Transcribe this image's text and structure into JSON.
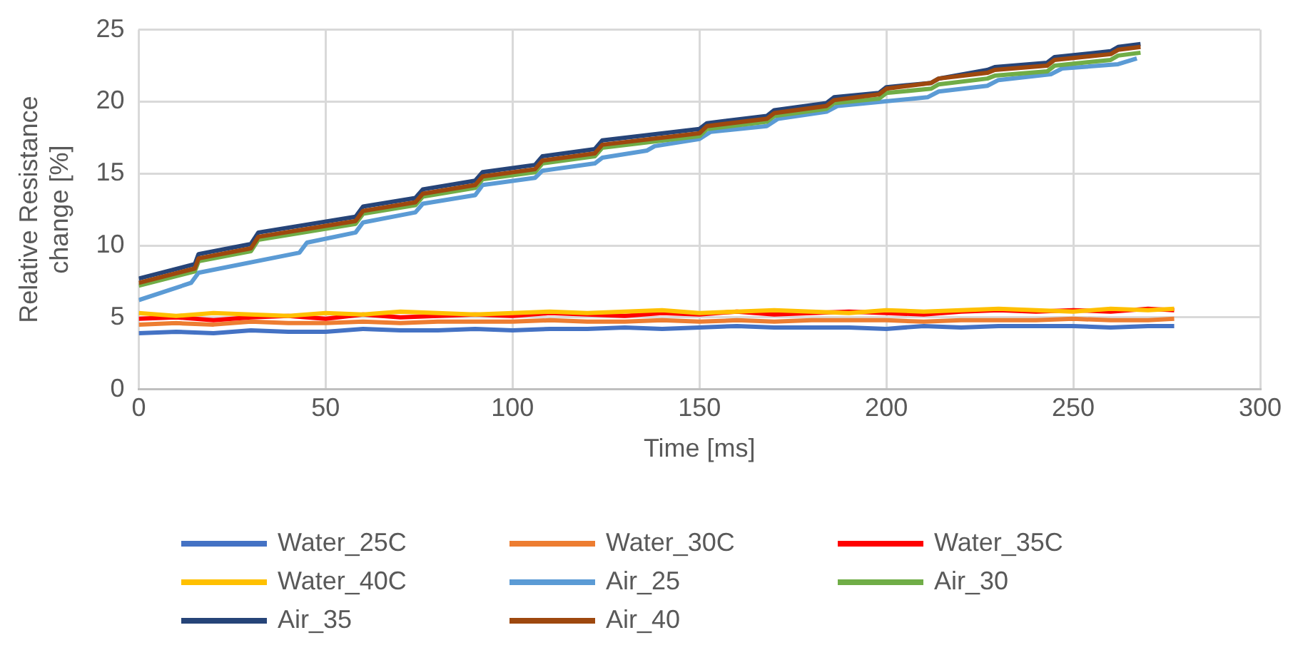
{
  "chart_data": {
    "type": "line",
    "xlabel": "Time [ms]",
    "ylabel": "Relative Resistance change [%]",
    "xlim": [
      0,
      300
    ],
    "xticks": [
      0,
      50,
      100,
      150,
      200,
      250,
      300
    ],
    "ylim": [
      0,
      25
    ],
    "yticks": [
      0,
      5,
      10,
      15,
      20,
      25
    ],
    "grid": true,
    "legend": "bottom",
    "marker": "none",
    "line_style": "solid",
    "series": [
      {
        "name": "Water_25C",
        "color": "#4472c4",
        "x": [
          0,
          10,
          20,
          30,
          40,
          50,
          60,
          70,
          80,
          90,
          100,
          110,
          120,
          130,
          140,
          150,
          160,
          170,
          180,
          190,
          200,
          210,
          220,
          230,
          240,
          250,
          260,
          270,
          277
        ],
        "values": [
          3.9,
          4.0,
          3.9,
          4.1,
          4.0,
          4.0,
          4.2,
          4.1,
          4.1,
          4.2,
          4.1,
          4.2,
          4.2,
          4.3,
          4.2,
          4.3,
          4.4,
          4.3,
          4.3,
          4.3,
          4.2,
          4.4,
          4.3,
          4.4,
          4.4,
          4.4,
          4.3,
          4.4,
          4.4
        ]
      },
      {
        "name": "Water_30C",
        "color": "#ed7d31",
        "x": [
          0,
          10,
          20,
          30,
          40,
          50,
          60,
          70,
          80,
          90,
          100,
          110,
          120,
          130,
          140,
          150,
          160,
          170,
          180,
          190,
          200,
          210,
          220,
          230,
          240,
          250,
          260,
          270,
          277
        ],
        "values": [
          4.5,
          4.6,
          4.5,
          4.7,
          4.6,
          4.6,
          4.7,
          4.6,
          4.7,
          4.7,
          4.7,
          4.8,
          4.7,
          4.7,
          4.8,
          4.7,
          4.8,
          4.7,
          4.8,
          4.8,
          4.8,
          4.7,
          4.8,
          4.8,
          4.8,
          4.9,
          4.8,
          4.8,
          4.9
        ]
      },
      {
        "name": "Water_35C",
        "color": "#ff0000",
        "x": [
          0,
          10,
          20,
          30,
          40,
          50,
          60,
          70,
          80,
          90,
          100,
          110,
          120,
          130,
          140,
          150,
          160,
          170,
          180,
          190,
          200,
          210,
          220,
          230,
          240,
          250,
          260,
          270,
          277
        ],
        "values": [
          4.9,
          5.0,
          4.8,
          5.0,
          5.1,
          4.9,
          5.2,
          5.0,
          5.1,
          5.2,
          5.1,
          5.3,
          5.2,
          5.1,
          5.3,
          5.2,
          5.4,
          5.2,
          5.3,
          5.4,
          5.3,
          5.2,
          5.4,
          5.5,
          5.4,
          5.5,
          5.4,
          5.6,
          5.5
        ]
      },
      {
        "name": "Water_40C",
        "color": "#ffc000",
        "x": [
          0,
          10,
          20,
          30,
          40,
          50,
          60,
          70,
          80,
          90,
          100,
          110,
          120,
          130,
          140,
          150,
          160,
          170,
          180,
          190,
          200,
          210,
          220,
          230,
          240,
          250,
          260,
          270,
          277
        ],
        "values": [
          5.3,
          5.1,
          5.3,
          5.2,
          5.1,
          5.3,
          5.2,
          5.4,
          5.3,
          5.2,
          5.3,
          5.4,
          5.3,
          5.4,
          5.5,
          5.3,
          5.4,
          5.5,
          5.4,
          5.3,
          5.5,
          5.4,
          5.5,
          5.6,
          5.5,
          5.4,
          5.6,
          5.5,
          5.6
        ]
      },
      {
        "name": "Air_25",
        "color": "#5b9bd5",
        "x": [
          0,
          14,
          16,
          43,
          45,
          58,
          60,
          74,
          76,
          90,
          92,
          106,
          108,
          122,
          124,
          136,
          138,
          150,
          153,
          168,
          171,
          184,
          187,
          211,
          214,
          227,
          230,
          244,
          247,
          262,
          267
        ],
        "values": [
          6.2,
          7.4,
          8.1,
          9.5,
          10.2,
          10.9,
          11.6,
          12.3,
          12.9,
          13.5,
          14.2,
          14.7,
          15.2,
          15.7,
          16.1,
          16.6,
          16.9,
          17.4,
          17.9,
          18.3,
          18.8,
          19.3,
          19.7,
          20.3,
          20.7,
          21.1,
          21.5,
          21.9,
          22.3,
          22.6,
          23.0
        ]
      },
      {
        "name": "Air_30",
        "color": "#70ad47",
        "x": [
          0,
          15,
          16,
          30,
          32,
          58,
          60,
          74,
          76,
          90,
          92,
          106,
          108,
          122,
          124,
          150,
          152,
          168,
          170,
          184,
          186,
          198,
          200,
          212,
          214,
          227,
          229,
          243,
          245,
          260,
          262,
          268
        ],
        "values": [
          7.2,
          8.2,
          8.9,
          9.6,
          10.4,
          11.5,
          12.2,
          12.8,
          13.4,
          14.0,
          14.6,
          15.1,
          15.7,
          16.2,
          16.8,
          17.6,
          18.1,
          18.6,
          19.0,
          19.5,
          19.9,
          20.2,
          20.6,
          20.9,
          21.2,
          21.6,
          21.8,
          22.1,
          22.5,
          22.9,
          23.2,
          23.4
        ]
      },
      {
        "name": "Air_35",
        "color": "#264478",
        "x": [
          0,
          15,
          16,
          30,
          32,
          58,
          60,
          74,
          76,
          90,
          92,
          106,
          108,
          122,
          124,
          150,
          152,
          168,
          170,
          184,
          186,
          198,
          200,
          212,
          214,
          227,
          229,
          243,
          245,
          260,
          262,
          268
        ],
        "values": [
          7.7,
          8.7,
          9.4,
          10.1,
          10.9,
          12.0,
          12.7,
          13.3,
          13.9,
          14.5,
          15.1,
          15.6,
          16.2,
          16.7,
          17.3,
          18.1,
          18.5,
          19.0,
          19.4,
          19.9,
          20.3,
          20.6,
          21.0,
          21.3,
          21.6,
          22.2,
          22.4,
          22.7,
          23.1,
          23.5,
          23.8,
          24.0
        ]
      },
      {
        "name": "Air_40",
        "color": "#9e480e",
        "x": [
          0,
          15,
          16,
          30,
          32,
          58,
          60,
          74,
          76,
          90,
          92,
          106,
          108,
          122,
          124,
          150,
          152,
          168,
          170,
          184,
          186,
          198,
          200,
          212,
          214,
          227,
          229,
          243,
          245,
          260,
          262,
          268
        ],
        "values": [
          7.4,
          8.4,
          9.1,
          9.8,
          10.6,
          11.7,
          12.4,
          13.0,
          13.6,
          14.2,
          14.8,
          15.3,
          15.9,
          16.4,
          17.0,
          17.8,
          18.3,
          18.8,
          19.2,
          19.7,
          20.1,
          20.5,
          20.9,
          21.3,
          21.6,
          22.0,
          22.2,
          22.5,
          22.9,
          23.3,
          23.6,
          23.8
        ]
      }
    ]
  }
}
